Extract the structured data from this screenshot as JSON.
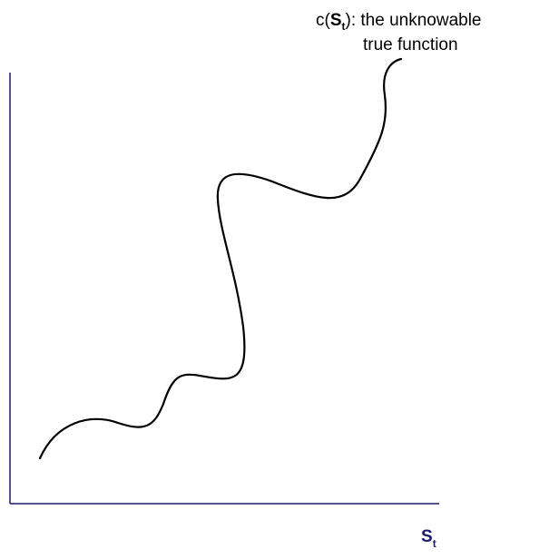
{
  "curve_label": {
    "prefix": "c(",
    "var": "S",
    "var_sub": "t",
    "suffix": "):  the unknowable",
    "line2": "true function"
  },
  "x_axis_label": {
    "var": "S",
    "var_sub": "t"
  },
  "colors": {
    "axis": "#1a1a6e",
    "curve": "#000000",
    "axis_label": "#1a1a6e"
  }
}
